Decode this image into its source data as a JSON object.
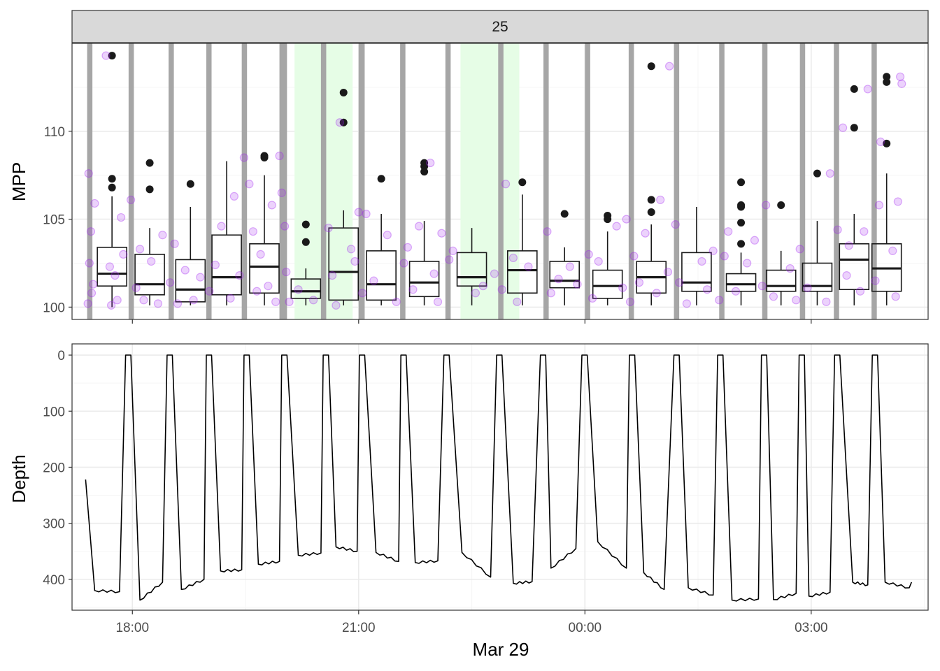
{
  "colors": {
    "panel_border": "#333333",
    "grid_major": "#ebebeb",
    "grid_minor": "#f5f5f5",
    "strip_fill": "#d9d9d9",
    "dive_band": "#a6a6a6",
    "highlight": "#e6fde6",
    "point": "#a020f0",
    "box_line": "#1a1a1a",
    "line": "#000000"
  },
  "chart_data": [
    {
      "type": "box",
      "facet_label": "25",
      "ylabel": "MPP",
      "ylim": [
        99.3,
        115
      ],
      "y_ticks": [
        100,
        105,
        110
      ],
      "y_tick_labels": [
        "100",
        "105",
        "110"
      ],
      "x_axis": {
        "units": "hours since Mar 29 00:00",
        "range": [
          -6.8,
          4.55
        ],
        "ticks": [
          -6,
          -3,
          0,
          3
        ],
        "tick_labels": [
          "18:00",
          "21:00",
          "00:00",
          "03:00"
        ],
        "date_label": "Mar 29",
        "show_tick_labels": false
      },
      "dive_bands": [
        [
          -6.6,
          -6.53
        ],
        [
          -6.05,
          -5.98
        ],
        [
          -5.52,
          -5.45
        ],
        [
          -5.02,
          -4.95
        ],
        [
          -4.55,
          -4.48
        ],
        [
          -4.05,
          -3.95
        ],
        [
          -3.5,
          -3.43
        ],
        [
          -3.0,
          -2.92
        ],
        [
          -2.45,
          -2.38
        ],
        [
          -1.85,
          -1.78
        ],
        [
          -1.15,
          -1.08
        ],
        [
          -0.55,
          -0.48
        ],
        [
          0.0,
          0.07
        ],
        [
          0.58,
          0.65
        ],
        [
          1.18,
          1.25
        ],
        [
          1.78,
          1.85
        ],
        [
          2.35,
          2.42
        ],
        [
          2.85,
          2.92
        ],
        [
          3.3,
          3.37
        ],
        [
          3.8,
          3.87
        ]
      ],
      "highlight_bands": [
        [
          -3.85,
          -3.08
        ],
        [
          -1.65,
          -0.87
        ]
      ],
      "boxes": [
        {
          "x": -6.27,
          "q1": 101.2,
          "median": 101.9,
          "q3": 103.4,
          "whisker_low": 100.0,
          "whisker_high": 106.3,
          "outliers": [
            114.3,
            107.3,
            106.8
          ]
        },
        {
          "x": -5.77,
          "q1": 100.7,
          "median": 101.3,
          "q3": 103.0,
          "whisker_low": 100.1,
          "whisker_high": 104.5,
          "outliers": [
            108.2,
            106.7
          ]
        },
        {
          "x": -5.23,
          "q1": 100.3,
          "median": 101.0,
          "q3": 102.7,
          "whisker_low": 100.1,
          "whisker_high": 105.7,
          "outliers": [
            107.0
          ]
        },
        {
          "x": -4.75,
          "q1": 100.7,
          "median": 101.7,
          "q3": 104.1,
          "whisker_low": 100.1,
          "whisker_high": 108.3,
          "outliers": []
        },
        {
          "x": -4.25,
          "q1": 100.8,
          "median": 102.3,
          "q3": 103.6,
          "whisker_low": 100.1,
          "whisker_high": 107.5,
          "outliers": [
            108.6,
            108.5
          ]
        },
        {
          "x": -3.7,
          "q1": 100.5,
          "median": 100.9,
          "q3": 101.6,
          "whisker_low": 100.1,
          "whisker_high": 102.2,
          "outliers": [
            104.7,
            103.7
          ]
        },
        {
          "x": -3.2,
          "q1": 100.4,
          "median": 102.0,
          "q3": 104.5,
          "whisker_low": 100.1,
          "whisker_high": 105.5,
          "outliers": [
            112.2,
            110.5
          ]
        },
        {
          "x": -2.7,
          "q1": 100.4,
          "median": 101.3,
          "q3": 103.2,
          "whisker_low": 100.1,
          "whisker_high": 105.3,
          "outliers": [
            107.3
          ]
        },
        {
          "x": -2.13,
          "q1": 100.6,
          "median": 101.4,
          "q3": 102.6,
          "whisker_low": 100.1,
          "whisker_high": 104.9,
          "outliers": [
            108.2,
            108.0,
            107.7
          ]
        },
        {
          "x": -1.5,
          "q1": 101.2,
          "median": 101.7,
          "q3": 103.1,
          "whisker_low": 100.1,
          "whisker_high": 104.5,
          "outliers": []
        },
        {
          "x": -0.83,
          "q1": 100.8,
          "median": 102.1,
          "q3": 103.2,
          "whisker_low": 100.1,
          "whisker_high": 106.4,
          "outliers": [
            107.1
          ]
        },
        {
          "x": -0.27,
          "q1": 101.1,
          "median": 101.5,
          "q3": 102.6,
          "whisker_low": 100.1,
          "whisker_high": 103.4,
          "outliers": [
            105.3
          ]
        },
        {
          "x": 0.3,
          "q1": 100.5,
          "median": 101.2,
          "q3": 102.1,
          "whisker_low": 100.1,
          "whisker_high": 104.3,
          "outliers": [
            105.2,
            105.0
          ]
        },
        {
          "x": 0.88,
          "q1": 100.8,
          "median": 101.7,
          "q3": 102.6,
          "whisker_low": 100.1,
          "whisker_high": 104.7,
          "outliers": [
            113.7,
            106.1,
            105.4
          ]
        },
        {
          "x": 1.48,
          "q1": 100.9,
          "median": 101.4,
          "q3": 103.1,
          "whisker_low": 100.1,
          "whisker_high": 105.7,
          "outliers": []
        },
        {
          "x": 2.07,
          "q1": 100.9,
          "median": 101.3,
          "q3": 101.9,
          "whisker_low": 100.1,
          "whisker_high": 103.1,
          "outliers": [
            107.1,
            105.8,
            105.7,
            104.8,
            103.6
          ]
        },
        {
          "x": 2.6,
          "q1": 100.9,
          "median": 101.2,
          "q3": 102.1,
          "whisker_low": 100.1,
          "whisker_high": 103.2,
          "outliers": [
            105.8
          ]
        },
        {
          "x": 3.08,
          "q1": 100.9,
          "median": 101.2,
          "q3": 102.5,
          "whisker_low": 100.1,
          "whisker_high": 104.9,
          "outliers": [
            107.6
          ]
        },
        {
          "x": 3.57,
          "q1": 101.0,
          "median": 102.7,
          "q3": 103.6,
          "whisker_low": 100.1,
          "whisker_high": 105.3,
          "outliers": [
            112.4,
            110.2
          ]
        },
        {
          "x": 4.0,
          "q1": 100.9,
          "median": 102.2,
          "q3": 103.6,
          "whisker_low": 100.1,
          "whisker_high": 107.6,
          "outliers": [
            113.1,
            112.8,
            109.3
          ]
        }
      ],
      "jitter_points": [
        [
          -6.58,
          107.6
        ],
        [
          -6.55,
          104.3
        ],
        [
          -6.57,
          102.5
        ],
        [
          -6.52,
          101.3
        ],
        [
          -6.59,
          100.2
        ],
        [
          -6.5,
          105.9
        ],
        [
          -6.54,
          100.8
        ],
        [
          -6.3,
          102.3
        ],
        [
          -6.2,
          100.4
        ],
        [
          -6.12,
          103.0
        ],
        [
          -6.35,
          114.3
        ],
        [
          -6.23,
          101.8
        ],
        [
          -6.15,
          105.1
        ],
        [
          -6.28,
          100.1
        ],
        [
          -6.02,
          106.1
        ],
        [
          -5.95,
          101.1
        ],
        [
          -5.9,
          103.3
        ],
        [
          -5.85,
          100.4
        ],
        [
          -5.75,
          102.6
        ],
        [
          -5.66,
          100.2
        ],
        [
          -5.6,
          104.1
        ],
        [
          -5.5,
          101.4
        ],
        [
          -5.44,
          103.6
        ],
        [
          -5.4,
          100.2
        ],
        [
          -5.3,
          102.1
        ],
        [
          -5.19,
          100.4
        ],
        [
          -5.1,
          101.7
        ],
        [
          -4.98,
          100.9
        ],
        [
          -4.9,
          102.4
        ],
        [
          -4.82,
          104.6
        ],
        [
          -4.7,
          100.5
        ],
        [
          -4.65,
          106.3
        ],
        [
          -4.58,
          101.8
        ],
        [
          -4.52,
          108.5
        ],
        [
          -4.45,
          107.0
        ],
        [
          -4.4,
          104.3
        ],
        [
          -4.35,
          100.9
        ],
        [
          -4.3,
          103.0
        ],
        [
          -4.2,
          101.2
        ],
        [
          -4.15,
          105.8
        ],
        [
          -4.1,
          100.3
        ],
        [
          -4.05,
          108.6
        ],
        [
          -4.02,
          106.5
        ],
        [
          -3.98,
          104.6
        ],
        [
          -3.96,
          102.0
        ],
        [
          -3.92,
          100.3
        ],
        [
          -3.8,
          101.0
        ],
        [
          -3.6,
          100.4
        ],
        [
          -3.4,
          104.5
        ],
        [
          -3.35,
          101.8
        ],
        [
          -3.3,
          100.1
        ],
        [
          -3.25,
          110.5
        ],
        [
          -3.1,
          103.3
        ],
        [
          -3.05,
          102.6
        ],
        [
          -3.0,
          105.4
        ],
        [
          -2.95,
          100.8
        ],
        [
          -2.9,
          105.3
        ],
        [
          -2.8,
          101.5
        ],
        [
          -2.62,
          104.1
        ],
        [
          -2.5,
          100.3
        ],
        [
          -2.4,
          102.5
        ],
        [
          -2.35,
          103.4
        ],
        [
          -2.28,
          101.0
        ],
        [
          -2.2,
          104.6
        ],
        [
          -2.05,
          108.2
        ],
        [
          -2.0,
          101.9
        ],
        [
          -1.95,
          100.3
        ],
        [
          -1.9,
          104.2
        ],
        [
          -1.8,
          102.7
        ],
        [
          -1.75,
          103.2
        ],
        [
          -1.45,
          100.8
        ],
        [
          -1.35,
          101.2
        ],
        [
          -1.2,
          101.9
        ],
        [
          -1.1,
          101.0
        ],
        [
          -1.05,
          107.0
        ],
        [
          -0.95,
          102.8
        ],
        [
          -0.9,
          100.3
        ],
        [
          -0.75,
          102.3
        ],
        [
          -0.5,
          104.3
        ],
        [
          -0.45,
          100.8
        ],
        [
          -0.35,
          101.6
        ],
        [
          -0.2,
          102.3
        ],
        [
          -0.1,
          101.3
        ],
        [
          0.05,
          103.0
        ],
        [
          0.1,
          100.5
        ],
        [
          0.18,
          102.6
        ],
        [
          0.42,
          104.6
        ],
        [
          0.5,
          101.1
        ],
        [
          0.55,
          105.0
        ],
        [
          0.6,
          100.3
        ],
        [
          0.65,
          102.9
        ],
        [
          0.72,
          101.4
        ],
        [
          0.8,
          104.2
        ],
        [
          0.95,
          100.8
        ],
        [
          1.0,
          106.1
        ],
        [
          1.1,
          102.0
        ],
        [
          1.12,
          113.7
        ],
        [
          1.2,
          104.7
        ],
        [
          1.25,
          101.4
        ],
        [
          1.35,
          100.2
        ],
        [
          1.55,
          102.6
        ],
        [
          1.62,
          101.0
        ],
        [
          1.7,
          103.2
        ],
        [
          1.78,
          100.4
        ],
        [
          1.85,
          102.9
        ],
        [
          1.9,
          104.3
        ],
        [
          2.0,
          100.9
        ],
        [
          2.15,
          102.5
        ],
        [
          2.25,
          103.8
        ],
        [
          2.35,
          101.2
        ],
        [
          2.4,
          105.8
        ],
        [
          2.5,
          100.6
        ],
        [
          2.72,
          102.2
        ],
        [
          2.8,
          100.4
        ],
        [
          2.85,
          103.3
        ],
        [
          2.95,
          101.1
        ],
        [
          3.2,
          100.3
        ],
        [
          3.25,
          107.6
        ],
        [
          3.35,
          104.4
        ],
        [
          3.42,
          110.2
        ],
        [
          3.47,
          101.8
        ],
        [
          3.5,
          103.5
        ],
        [
          3.65,
          100.9
        ],
        [
          3.7,
          104.3
        ],
        [
          3.75,
          112.4
        ],
        [
          3.85,
          101.5
        ],
        [
          3.9,
          105.8
        ],
        [
          3.92,
          109.4
        ],
        [
          4.08,
          103.2
        ],
        [
          4.12,
          100.6
        ],
        [
          4.15,
          106.0
        ],
        [
          4.18,
          113.1
        ],
        [
          4.2,
          112.7
        ]
      ]
    },
    {
      "type": "line",
      "xlabel": "Mar 29",
      "ylabel": "Depth",
      "ylim": [
        455,
        -20
      ],
      "y_ticks": [
        0,
        100,
        200,
        300,
        400
      ],
      "y_tick_labels": [
        "0",
        "100",
        "200",
        "300",
        "400"
      ],
      "x_axis": {
        "units": "hours since Mar 29 00:00",
        "range": [
          -6.8,
          4.55
        ],
        "ticks": [
          -6,
          -3,
          0,
          3
        ],
        "tick_labels": [
          "18:00",
          "21:00",
          "00:00",
          "03:00"
        ]
      },
      "cycles": [
        {
          "bottom_start_t": -6.5,
          "bottom_start_d": 420,
          "bottom_end_t": -6.17,
          "bottom_end_d": 422,
          "surface_t": -6.05
        },
        {
          "bottom_start_t": -5.9,
          "bottom_start_d": 437,
          "bottom_end_t": -5.6,
          "bottom_end_d": 405,
          "surface_t": -5.5
        },
        {
          "bottom_start_t": -5.35,
          "bottom_start_d": 418,
          "bottom_end_t": -5.05,
          "bottom_end_d": 400,
          "surface_t": -4.98
        },
        {
          "bottom_start_t": -4.83,
          "bottom_start_d": 385,
          "bottom_end_t": -4.55,
          "bottom_end_d": 383,
          "surface_t": -4.48
        },
        {
          "bottom_start_t": -4.33,
          "bottom_start_d": 373,
          "bottom_end_t": -4.05,
          "bottom_end_d": 368,
          "surface_t": -3.98
        },
        {
          "bottom_start_t": -3.8,
          "bottom_start_d": 357,
          "bottom_end_t": -3.5,
          "bottom_end_d": 353,
          "surface_t": -3.43
        },
        {
          "bottom_start_t": -3.3,
          "bottom_start_d": 342,
          "bottom_end_t": -3.02,
          "bottom_end_d": 350,
          "surface_t": -2.95
        },
        {
          "bottom_start_t": -2.77,
          "bottom_start_d": 352,
          "bottom_end_t": -2.47,
          "bottom_end_d": 368,
          "surface_t": -2.4
        },
        {
          "bottom_start_t": -2.25,
          "bottom_start_d": 370,
          "bottom_end_t": -1.95,
          "bottom_end_d": 367,
          "surface_t": -1.83
        },
        {
          "bottom_start_t": -1.63,
          "bottom_start_d": 352,
          "bottom_end_t": -1.25,
          "bottom_end_d": 396,
          "surface_t": -1.13
        },
        {
          "bottom_start_t": -0.95,
          "bottom_start_d": 407,
          "bottom_end_t": -0.7,
          "bottom_end_d": 404,
          "surface_t": -0.55
        },
        {
          "bottom_start_t": -0.45,
          "bottom_start_d": 380,
          "bottom_end_t": -0.12,
          "bottom_end_d": 345,
          "surface_t": 0.0
        },
        {
          "bottom_start_t": 0.17,
          "bottom_start_d": 333,
          "bottom_end_t": 0.55,
          "bottom_end_d": 380,
          "surface_t": 0.63
        },
        {
          "bottom_start_t": 0.78,
          "bottom_start_d": 388,
          "bottom_end_t": 1.05,
          "bottom_end_d": 418,
          "surface_t": 1.22
        },
        {
          "bottom_start_t": 1.37,
          "bottom_start_d": 415,
          "bottom_end_t": 1.7,
          "bottom_end_d": 428,
          "surface_t": 1.8
        },
        {
          "bottom_start_t": 1.95,
          "bottom_start_d": 437,
          "bottom_end_t": 2.3,
          "bottom_end_d": 435,
          "surface_t": 2.38
        },
        {
          "bottom_start_t": 2.5,
          "bottom_start_d": 436,
          "bottom_end_t": 2.8,
          "bottom_end_d": 425,
          "surface_t": 2.88
        },
        {
          "bottom_start_t": 2.97,
          "bottom_start_d": 430,
          "bottom_end_t": 3.25,
          "bottom_end_d": 423,
          "surface_t": 3.35
        },
        {
          "bottom_start_t": 3.55,
          "bottom_start_d": 405,
          "bottom_end_t": 3.75,
          "bottom_end_d": 410,
          "surface_t": 3.85
        },
        {
          "bottom_start_t": 3.98,
          "bottom_start_d": 405,
          "bottom_end_t": 4.3,
          "bottom_end_d": 415,
          "surface_t": null
        }
      ],
      "start_point": {
        "t": -6.62,
        "d": 222
      },
      "end_point": {
        "t": 4.33,
        "d": 405
      }
    }
  ]
}
